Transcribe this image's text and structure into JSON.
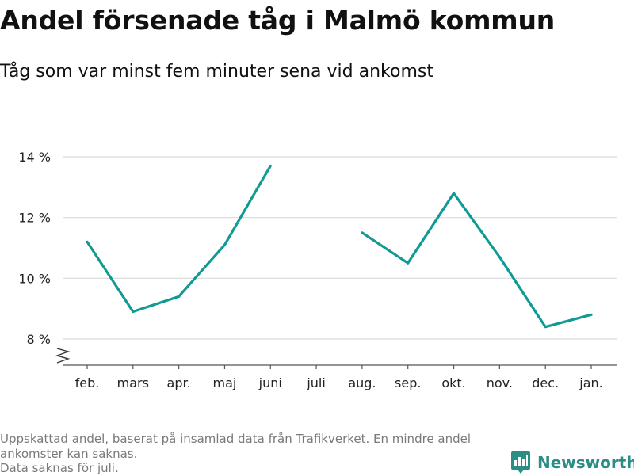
{
  "title": "Andel försenade tåg i Malmö kommun",
  "subtitle": "Tåg som var minst fem minuter sena vid ankomst",
  "footnote": {
    "line1": "Uppskattad andel, baserat på insamlad data från Trafikverket. En mindre andel",
    "line2": "ankomster kan saknas.",
    "line3": "Data saknas för juli."
  },
  "brand": {
    "name": "Newsworthy",
    "icon": "newsworthy-logo-icon"
  },
  "colors": {
    "line": "#0f9b93",
    "grid": "#d9d9d9",
    "axis": "#555555",
    "brand": "#2a8e86"
  },
  "chart_data": {
    "type": "line",
    "title": "Andel försenade tåg i Malmö kommun",
    "subtitle": "Tåg som var minst fem minuter sena vid ankomst",
    "xlabel": "",
    "ylabel": "",
    "categories": [
      "feb.",
      "mars",
      "apr.",
      "maj",
      "juni",
      "juli",
      "aug.",
      "sep.",
      "okt.",
      "nov.",
      "dec.",
      "jan."
    ],
    "series": [
      {
        "values": [
          11.2,
          8.9,
          9.4,
          11.1,
          13.7,
          null,
          11.5,
          10.5,
          12.8,
          10.7,
          8.4,
          8.8
        ]
      }
    ],
    "y_ticks": [
      8,
      10,
      12,
      14
    ],
    "y_tick_labels": [
      "8 %",
      "10 %",
      "12 %",
      "14 %"
    ],
    "ylim": [
      8,
      14
    ],
    "y_axis_break": true,
    "grid": true,
    "legend": "none"
  }
}
